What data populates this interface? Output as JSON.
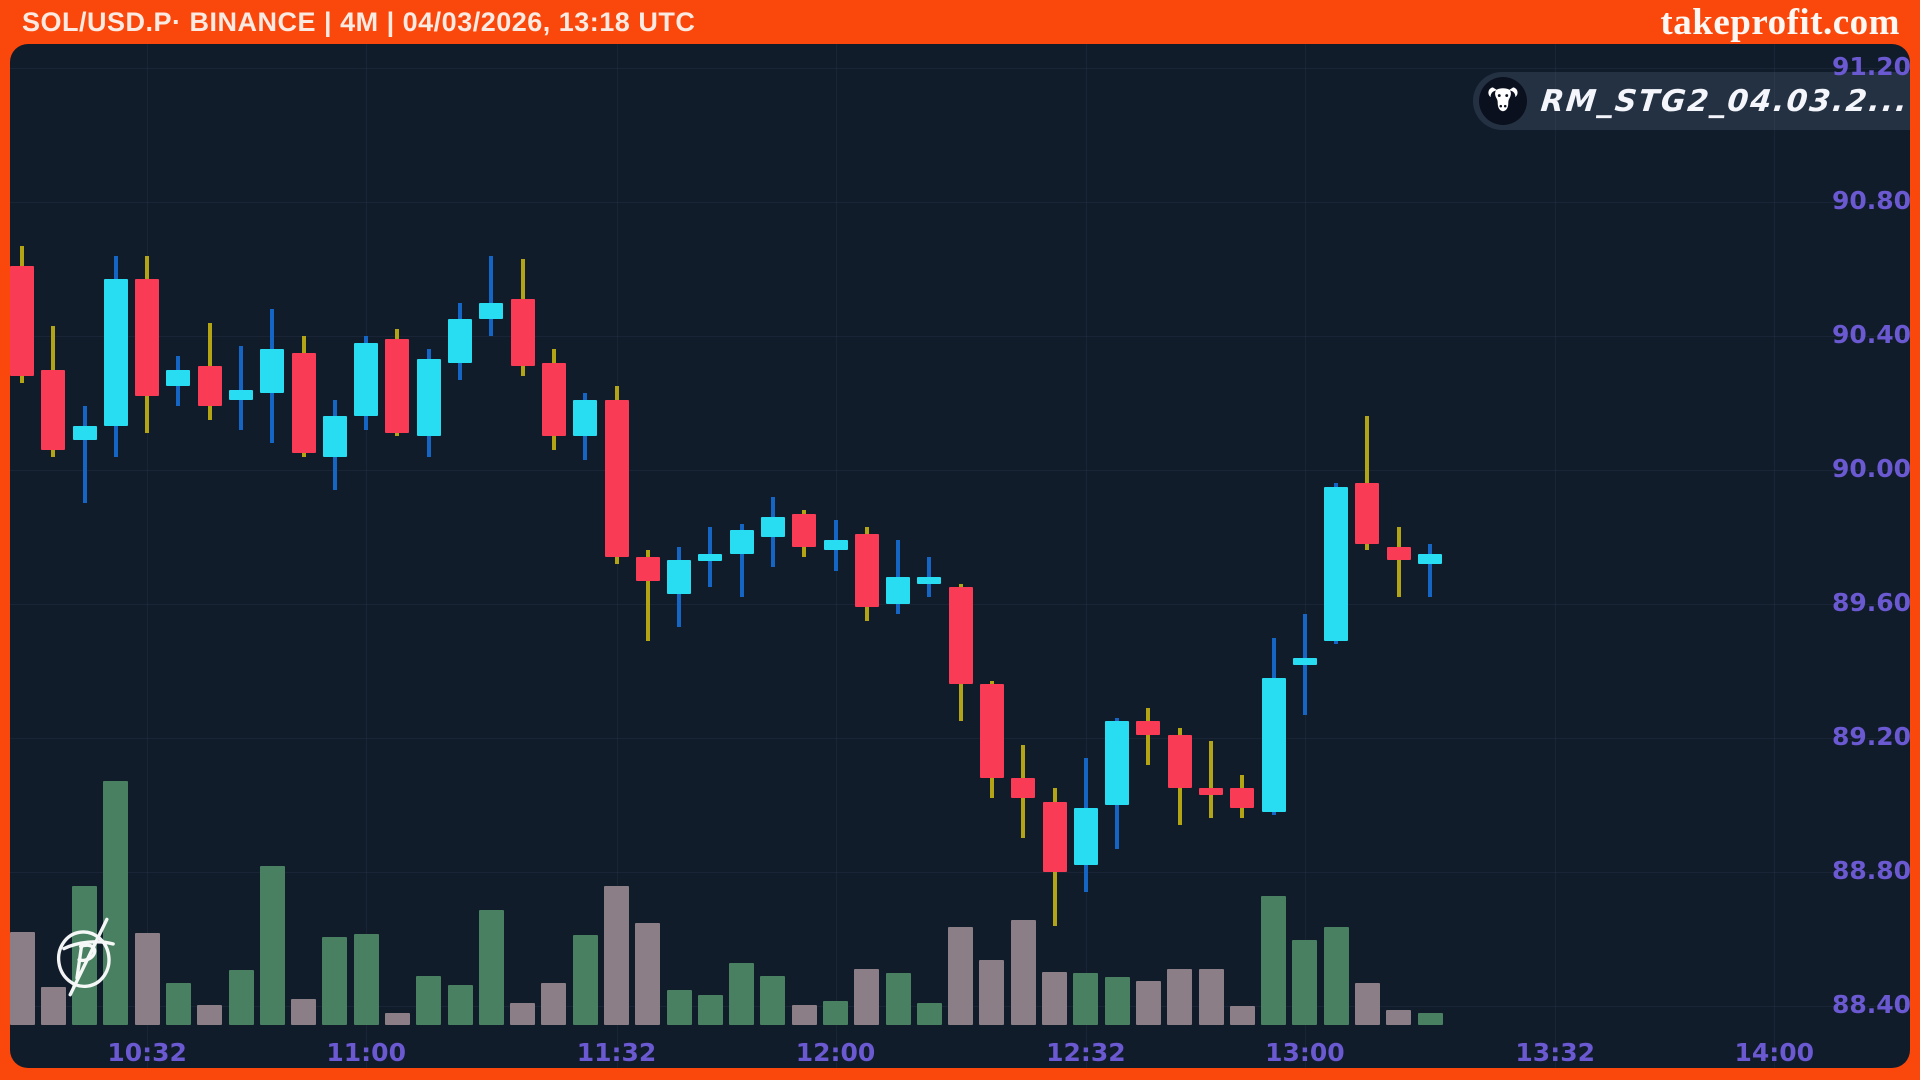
{
  "header": {
    "title": "SOL/USD.P· BINANCE | 4M | 04/03/2026, 13:18 UTC",
    "brand": "takeprofit.com"
  },
  "badge": {
    "label": "RM_STG2_04.03.2...",
    "icon": "bull-icon"
  },
  "watermark": {
    "icon": "takeprofit-sketch-logo"
  },
  "colors": {
    "frame_orange": "#FA480C",
    "panel_bg": "#111C2B",
    "axis_label_purple": "#6A59D1",
    "candle_up": "#28DCF1",
    "candle_down": "#F93B55",
    "wick_up": "#1566C4",
    "wick_down": "#B2A414",
    "volume_up": "#4A8062",
    "volume_down": "#8B7E86",
    "title_text": "#FBEAE2"
  },
  "chart_data": {
    "type": "candlestick",
    "title": "SOL/USD.P· BINANCE | 4M | 04/03/2026, 13:18 UTC",
    "symbol": "SOL/USD.P",
    "exchange": "BINANCE",
    "timeframe": "4M",
    "timestamp": "04/03/2026, 13:18 UTC",
    "first_candle_time": "10:16",
    "interval_minutes": 4,
    "grid": true,
    "legend": false,
    "ylim": [
      88.34,
      91.27
    ],
    "y_ticks": [
      "91.20",
      "90.80",
      "90.40",
      "90.00",
      "89.60",
      "89.20",
      "88.80",
      "88.40"
    ],
    "x_ticks": [
      "10:32",
      "11:00",
      "11:32",
      "12:00",
      "12:32",
      "13:00",
      "13:32",
      "14:00"
    ],
    "columns": [
      "open",
      "high",
      "low",
      "close",
      "volume_rel"
    ],
    "candles": [
      [
        90.61,
        90.67,
        90.26,
        90.28,
        93
      ],
      [
        90.3,
        90.43,
        90.04,
        90.06,
        38
      ],
      [
        90.09,
        90.19,
        89.9,
        90.13,
        139
      ],
      [
        90.13,
        90.64,
        90.04,
        90.57,
        244
      ],
      [
        90.57,
        90.64,
        90.11,
        90.22,
        92
      ],
      [
        90.25,
        90.34,
        90.19,
        90.3,
        42
      ],
      [
        90.31,
        90.44,
        90.15,
        90.19,
        20
      ],
      [
        90.21,
        90.37,
        90.12,
        90.24,
        55
      ],
      [
        90.23,
        90.48,
        90.08,
        90.36,
        159
      ],
      [
        90.35,
        90.4,
        90.04,
        90.05,
        26
      ],
      [
        90.04,
        90.21,
        89.94,
        90.16,
        88
      ],
      [
        90.16,
        90.4,
        90.12,
        90.38,
        91
      ],
      [
        90.39,
        90.42,
        90.1,
        90.11,
        12
      ],
      [
        90.1,
        90.36,
        90.04,
        90.33,
        49
      ],
      [
        90.32,
        90.5,
        90.27,
        90.45,
        40
      ],
      [
        90.45,
        90.64,
        90.4,
        90.5,
        115
      ],
      [
        90.51,
        90.63,
        90.28,
        90.31,
        22
      ],
      [
        90.32,
        90.36,
        90.06,
        90.1,
        42
      ],
      [
        90.1,
        90.23,
        90.03,
        90.21,
        90
      ],
      [
        90.21,
        90.25,
        89.72,
        89.74,
        139
      ],
      [
        89.74,
        89.76,
        89.49,
        89.67,
        102
      ],
      [
        89.63,
        89.77,
        89.53,
        89.73,
        35
      ],
      [
        89.74,
        89.83,
        89.65,
        89.75,
        30
      ],
      [
        89.75,
        89.84,
        89.62,
        89.82,
        62
      ],
      [
        89.8,
        89.92,
        89.71,
        89.86,
        49
      ],
      [
        89.87,
        89.88,
        89.74,
        89.77,
        20
      ],
      [
        89.76,
        89.85,
        89.7,
        89.79,
        24
      ],
      [
        89.81,
        89.83,
        89.55,
        89.59,
        56
      ],
      [
        89.6,
        89.79,
        89.57,
        89.68,
        52
      ],
      [
        89.67,
        89.74,
        89.62,
        89.68,
        22
      ],
      [
        89.65,
        89.66,
        89.25,
        89.36,
        98
      ],
      [
        89.36,
        89.37,
        89.02,
        89.08,
        65
      ],
      [
        89.08,
        89.18,
        88.9,
        89.02,
        105
      ],
      [
        89.01,
        89.05,
        88.64,
        88.8,
        53
      ],
      [
        88.82,
        89.14,
        88.74,
        88.99,
        52
      ],
      [
        89.0,
        89.26,
        88.87,
        89.25,
        48
      ],
      [
        89.25,
        89.29,
        89.12,
        89.21,
        44
      ],
      [
        89.21,
        89.23,
        88.94,
        89.05,
        56
      ],
      [
        89.05,
        89.19,
        88.96,
        89.03,
        56
      ],
      [
        89.05,
        89.09,
        88.96,
        88.99,
        19
      ],
      [
        88.98,
        89.5,
        88.97,
        89.38,
        129
      ],
      [
        89.43,
        89.57,
        89.27,
        89.44,
        85
      ],
      [
        89.49,
        89.96,
        89.48,
        89.95,
        98
      ],
      [
        89.96,
        90.16,
        89.76,
        89.78,
        42
      ],
      [
        89.77,
        89.83,
        89.62,
        89.73,
        15
      ],
      [
        89.72,
        89.78,
        89.62,
        89.75,
        12
      ]
    ]
  }
}
